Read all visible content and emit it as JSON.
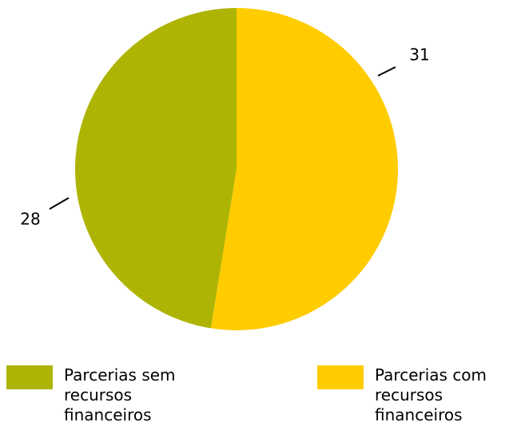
{
  "chart_data": {
    "type": "pie",
    "categories": [
      "Parcerias com recursos financeiros",
      "Parcerias sem recursos financeiros"
    ],
    "values": [
      31,
      28
    ],
    "colors": [
      "#ffcc00",
      "#aeb404"
    ]
  }
}
